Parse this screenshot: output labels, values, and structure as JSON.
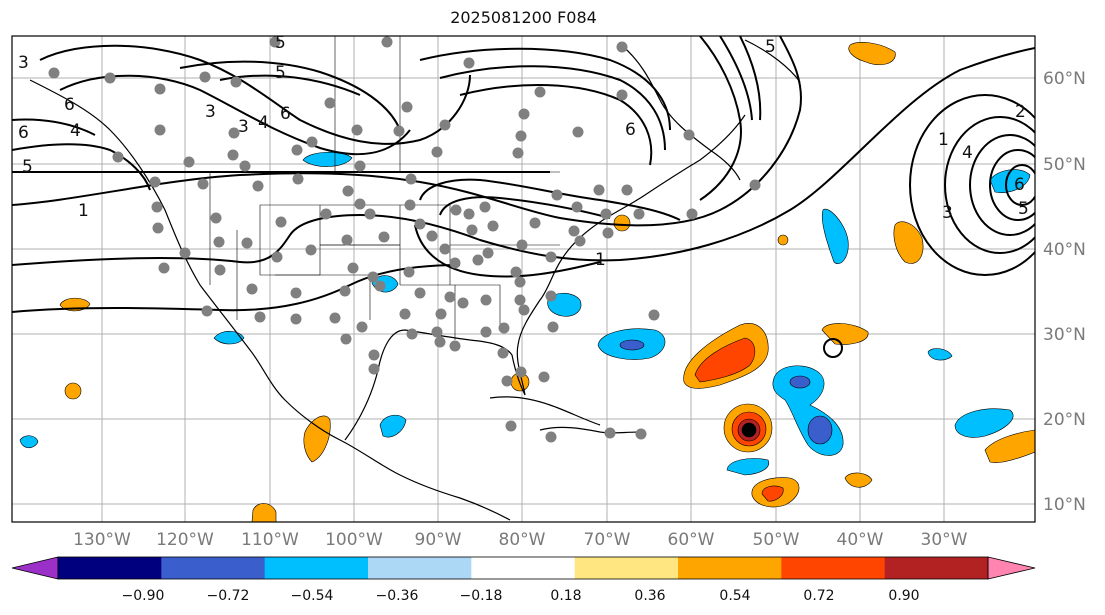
{
  "title": "2025081200 F084",
  "lat_labels": [
    "60°N",
    "50°N",
    "40°N",
    "30°N",
    "20°N",
    "10°N"
  ],
  "lon_labels": [
    "130°W",
    "120°W",
    "110°W",
    "100°W",
    "90°W",
    "80°W",
    "70°W",
    "60°W",
    "50°W",
    "40°W",
    "30°W"
  ],
  "colorbar": {
    "ticks": [
      "−0.90",
      "−0.72",
      "−0.54",
      "−0.36",
      "−0.18",
      "0.18",
      "0.36",
      "0.54",
      "0.72",
      "0.90"
    ],
    "colors": [
      "#9a30c8",
      "#00007f",
      "#3a5fcd",
      "#00bfff",
      "#add8f5",
      "#ffffff",
      "#ffe680",
      "#ffa500",
      "#ff4500",
      "#b22222",
      "#ff85b0"
    ]
  },
  "contour_labels": [
    "3",
    "5",
    "6",
    "5",
    "3",
    "4",
    "6",
    "4",
    "6",
    "5",
    "1",
    "1",
    "2",
    "1",
    "4",
    "5",
    "6",
    "3",
    "3",
    "5",
    "6"
  ],
  "fill_colors": {
    "orange": "#ffa500",
    "red_orange": "#ff4500",
    "dark_red": "#b22222",
    "light_blue": "#00bfff",
    "mid_blue": "#3a5fcd",
    "pale_blue": "#add8f5"
  },
  "station_color": "#808080"
}
